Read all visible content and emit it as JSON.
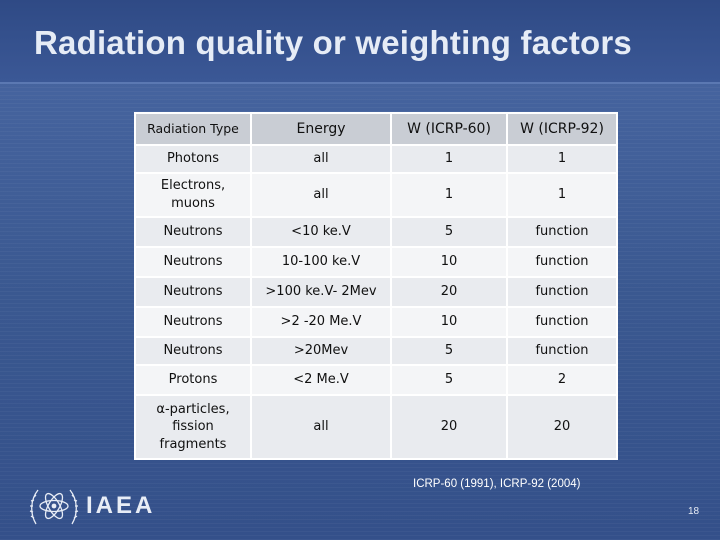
{
  "slide": {
    "title": "Radiation quality or weighting factors",
    "note": "ICRP-60 (1991), ICRP-92 (2004)",
    "logo_text": "IAEA",
    "page_number": "18"
  },
  "table": {
    "headers": [
      "Radiation Type",
      "Energy",
      "W (ICRP-60)",
      "W (ICRP-92)"
    ],
    "rows": [
      [
        "Photons",
        "all",
        "1",
        "1"
      ],
      [
        "Electrons, muons",
        "all",
        "1",
        "1"
      ],
      [
        "Neutrons",
        "<10 ke.V",
        "5",
        "function"
      ],
      [
        "Neutrons",
        "10-100 ke.V",
        "10",
        "function"
      ],
      [
        "Neutrons",
        ">100 ke.V- 2Mev",
        "20",
        "function"
      ],
      [
        "Neutrons",
        ">2 -20 Me.V",
        "10",
        "function"
      ],
      [
        "Neutrons",
        ">20Mev",
        "5",
        "function"
      ],
      [
        "Protons",
        "<2 Me.V",
        "5",
        "2"
      ],
      [
        "α-particles, fission fragments",
        "all",
        "20",
        "20"
      ]
    ]
  },
  "icons": {
    "logo": "iaea-atom-emblem-icon"
  }
}
